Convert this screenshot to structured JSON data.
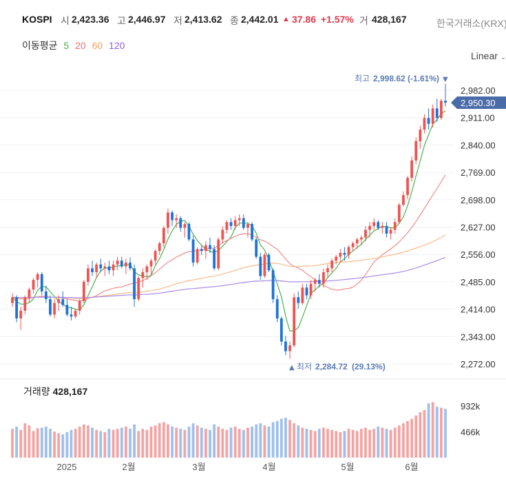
{
  "header": {
    "symbol": "KOSPI",
    "open_label": "시",
    "open": "2,423.36",
    "high_label": "고",
    "high": "2,446.97",
    "low_label": "저",
    "low": "2,413.62",
    "close_label": "종",
    "close": "2,442.01",
    "change_arrow": "▲",
    "change": "37.86",
    "change_pct": "+1.57%",
    "volume_label": "거",
    "volume": "428,167",
    "exchange": "한국거래소(KRX)"
  },
  "ma_legend": {
    "label": "이동평균",
    "ma5": "5",
    "ma20": "20",
    "ma60": "60",
    "ma120": "120"
  },
  "scale_button": "Linear",
  "colors": {
    "up": "#ef5350",
    "down": "#1e72d8",
    "ma5": "#4caf50",
    "ma20": "#f08a8a",
    "ma60": "#f5bb8a",
    "ma120": "#a98be6",
    "grid": "#f0f0f0"
  },
  "price_axis_labels": [
    "2,982.00",
    "2,911.00",
    "2,840.00",
    "2,769.00",
    "2,698.00",
    "2,627.00",
    "2,556.00",
    "2,485.00",
    "2,414.00",
    "2,343.00",
    "2,272.00"
  ],
  "current_price_tag": "2,950.30",
  "high_marker": {
    "label": "최고",
    "value": "2,998.62",
    "pct": "(-1.61%)",
    "arrow": "▼"
  },
  "low_marker": {
    "arrow": "▲",
    "label": "최저",
    "value": "2,284.72",
    "pct": "(29.13%)"
  },
  "volume_panel": {
    "label": "거래량",
    "value": "428,167",
    "axis_labels": [
      "932k",
      "466k"
    ]
  },
  "time_axis_labels": [
    "2025",
    "2월",
    "3월",
    "4월",
    "5월",
    "6월"
  ],
  "chart_data": {
    "type": "candlestick",
    "title": "KOSPI",
    "ylim": [
      2250,
      3010
    ],
    "ma_periods": [
      5,
      20,
      60,
      120
    ],
    "ohlc": [
      [
        2430,
        2455,
        2420,
        2445
      ],
      [
        2445,
        2450,
        2380,
        2390
      ],
      [
        2390,
        2420,
        2360,
        2410
      ],
      [
        2410,
        2450,
        2400,
        2445
      ],
      [
        2445,
        2470,
        2430,
        2465
      ],
      [
        2465,
        2495,
        2455,
        2490
      ],
      [
        2490,
        2510,
        2470,
        2505
      ],
      [
        2505,
        2510,
        2450,
        2460
      ],
      [
        2460,
        2475,
        2430,
        2440
      ],
      [
        2440,
        2450,
        2395,
        2400
      ],
      [
        2400,
        2440,
        2390,
        2430
      ],
      [
        2430,
        2450,
        2410,
        2440
      ],
      [
        2440,
        2460,
        2420,
        2425
      ],
      [
        2425,
        2440,
        2395,
        2400
      ],
      [
        2400,
        2420,
        2385,
        2395
      ],
      [
        2395,
        2415,
        2390,
        2410
      ],
      [
        2410,
        2440,
        2400,
        2435
      ],
      [
        2435,
        2490,
        2430,
        2485
      ],
      [
        2485,
        2530,
        2475,
        2520
      ],
      [
        2520,
        2540,
        2500,
        2510
      ],
      [
        2510,
        2535,
        2495,
        2530
      ],
      [
        2530,
        2545,
        2510,
        2520
      ],
      [
        2520,
        2535,
        2500,
        2525
      ],
      [
        2525,
        2540,
        2505,
        2515
      ],
      [
        2515,
        2540,
        2500,
        2530
      ],
      [
        2530,
        2550,
        2515,
        2540
      ],
      [
        2540,
        2550,
        2520,
        2525
      ],
      [
        2525,
        2545,
        2505,
        2535
      ],
      [
        2535,
        2548,
        2515,
        2520
      ],
      [
        2520,
        2530,
        2420,
        2440
      ],
      [
        2440,
        2500,
        2435,
        2495
      ],
      [
        2495,
        2520,
        2470,
        2510
      ],
      [
        2510,
        2530,
        2490,
        2525
      ],
      [
        2525,
        2545,
        2505,
        2540
      ],
      [
        2540,
        2570,
        2530,
        2565
      ],
      [
        2565,
        2590,
        2555,
        2585
      ],
      [
        2585,
        2630,
        2575,
        2625
      ],
      [
        2625,
        2675,
        2610,
        2665
      ],
      [
        2665,
        2670,
        2630,
        2645
      ],
      [
        2645,
        2660,
        2625,
        2650
      ],
      [
        2650,
        2655,
        2615,
        2625
      ],
      [
        2625,
        2640,
        2600,
        2635
      ],
      [
        2635,
        2640,
        2590,
        2595
      ],
      [
        2595,
        2605,
        2525,
        2535
      ],
      [
        2535,
        2575,
        2530,
        2570
      ],
      [
        2570,
        2580,
        2555,
        2565
      ],
      [
        2565,
        2590,
        2545,
        2580
      ],
      [
        2580,
        2600,
        2560,
        2570
      ],
      [
        2570,
        2580,
        2515,
        2520
      ],
      [
        2520,
        2600,
        2515,
        2595
      ],
      [
        2595,
        2630,
        2585,
        2620
      ],
      [
        2620,
        2645,
        2610,
        2640
      ],
      [
        2640,
        2650,
        2620,
        2630
      ],
      [
        2630,
        2655,
        2620,
        2645
      ],
      [
        2645,
        2660,
        2630,
        2650
      ],
      [
        2650,
        2660,
        2620,
        2625
      ],
      [
        2625,
        2640,
        2600,
        2635
      ],
      [
        2635,
        2640,
        2590,
        2595
      ],
      [
        2595,
        2600,
        2545,
        2550
      ],
      [
        2550,
        2560,
        2490,
        2500
      ],
      [
        2500,
        2560,
        2495,
        2555
      ],
      [
        2555,
        2560,
        2510,
        2515
      ],
      [
        2515,
        2520,
        2430,
        2440
      ],
      [
        2440,
        2450,
        2380,
        2390
      ],
      [
        2390,
        2395,
        2320,
        2330
      ],
      [
        2330,
        2345,
        2295,
        2305
      ],
      [
        2305,
        2330,
        2285,
        2320
      ],
      [
        2320,
        2455,
        2315,
        2445
      ],
      [
        2445,
        2460,
        2415,
        2430
      ],
      [
        2430,
        2480,
        2425,
        2470
      ],
      [
        2470,
        2480,
        2440,
        2450
      ],
      [
        2450,
        2490,
        2440,
        2480
      ],
      [
        2480,
        2495,
        2460,
        2490
      ],
      [
        2490,
        2505,
        2470,
        2480
      ],
      [
        2480,
        2520,
        2470,
        2510
      ],
      [
        2510,
        2530,
        2495,
        2520
      ],
      [
        2520,
        2545,
        2510,
        2540
      ],
      [
        2540,
        2555,
        2530,
        2550
      ],
      [
        2550,
        2570,
        2535,
        2560
      ],
      [
        2560,
        2575,
        2540,
        2555
      ],
      [
        2555,
        2580,
        2545,
        2575
      ],
      [
        2575,
        2590,
        2565,
        2585
      ],
      [
        2585,
        2600,
        2570,
        2595
      ],
      [
        2595,
        2605,
        2580,
        2600
      ],
      [
        2600,
        2630,
        2590,
        2620
      ],
      [
        2620,
        2640,
        2600,
        2630
      ],
      [
        2630,
        2650,
        2620,
        2640
      ],
      [
        2640,
        2645,
        2620,
        2625
      ],
      [
        2625,
        2640,
        2610,
        2630
      ],
      [
        2630,
        2640,
        2600,
        2610
      ],
      [
        2610,
        2625,
        2595,
        2620
      ],
      [
        2620,
        2650,
        2610,
        2640
      ],
      [
        2640,
        2690,
        2635,
        2685
      ],
      [
        2685,
        2720,
        2680,
        2710
      ],
      [
        2710,
        2760,
        2700,
        2755
      ],
      [
        2755,
        2810,
        2745,
        2800
      ],
      [
        2800,
        2860,
        2790,
        2850
      ],
      [
        2850,
        2890,
        2830,
        2880
      ],
      [
        2880,
        2920,
        2870,
        2910
      ],
      [
        2910,
        2935,
        2880,
        2895
      ],
      [
        2895,
        2945,
        2885,
        2935
      ],
      [
        2935,
        2960,
        2900,
        2910
      ],
      [
        2910,
        2960,
        2905,
        2955
      ],
      [
        2955,
        2999,
        2940,
        2950
      ]
    ],
    "volume_k": [
      520,
      560,
      500,
      620,
      580,
      480,
      530,
      540,
      560,
      520,
      470,
      440,
      420,
      460,
      500,
      520,
      560,
      600,
      580,
      540,
      500,
      480,
      460,
      520,
      500,
      520,
      540,
      560,
      520,
      600,
      480,
      520,
      500,
      560,
      580,
      620,
      640,
      600,
      560,
      540,
      520,
      500,
      560,
      620,
      580,
      540,
      520,
      500,
      600,
      560,
      520,
      500,
      540,
      560,
      520,
      500,
      540,
      560,
      600,
      620,
      580,
      560,
      640,
      660,
      700,
      720,
      680,
      620,
      580,
      540,
      520,
      500,
      480,
      520,
      540,
      520,
      500,
      480,
      460,
      480,
      520,
      500,
      480,
      520,
      540,
      500,
      520,
      560,
      540,
      520,
      500,
      540,
      580,
      620,
      660,
      700,
      760,
      820,
      860,
      980,
      1000,
      920,
      900,
      880
    ],
    "volume_axis": [
      "932k",
      "466k"
    ]
  }
}
